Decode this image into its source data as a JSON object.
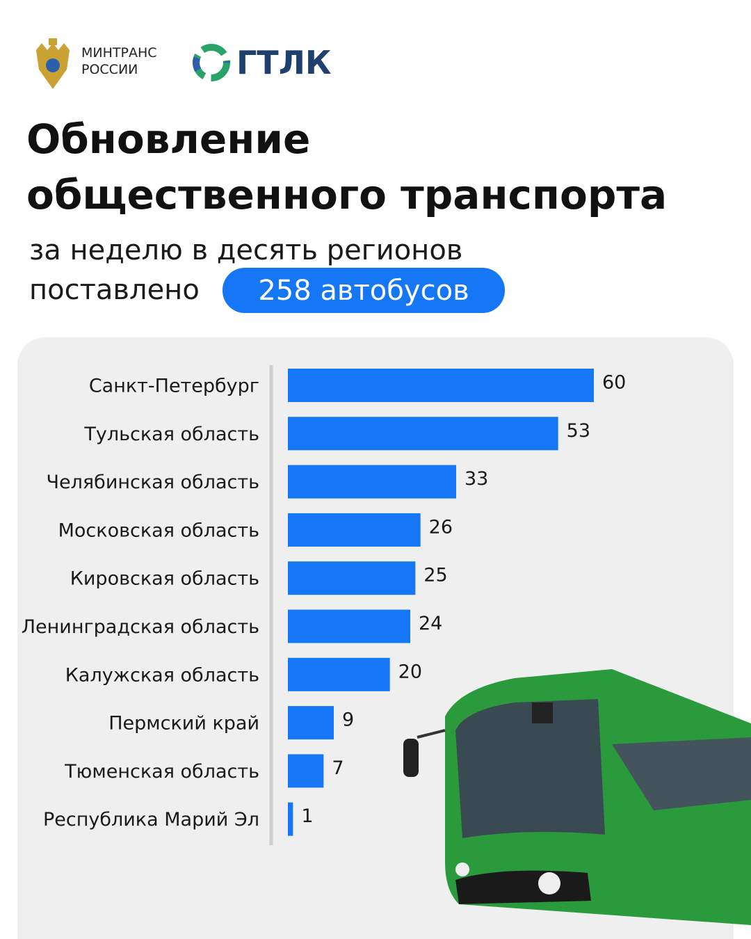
{
  "header": {
    "ministry": "МИНТРАНС\nРОССИИ",
    "brand": "ГТЛК",
    "title_line1": "Обновление",
    "title_line2": "общественного транспорта",
    "subtitle_line1": "за неделю в десять регионов",
    "subtitle_line2": "поставлено",
    "highlight": "258 автобусов"
  },
  "chart_data": {
    "type": "barh",
    "color": "#1577f6",
    "categories": [
      "Санкт-Петербург",
      "Тульская область",
      "Челябинская область",
      "Московская область",
      "Кировская область",
      "Ленинградская область",
      "Калужская область",
      "Пермский край",
      "Тюменская область",
      "Республика Марий Эл"
    ],
    "values": [
      60,
      53,
      33,
      26,
      25,
      24,
      20,
      9,
      7,
      1
    ]
  }
}
